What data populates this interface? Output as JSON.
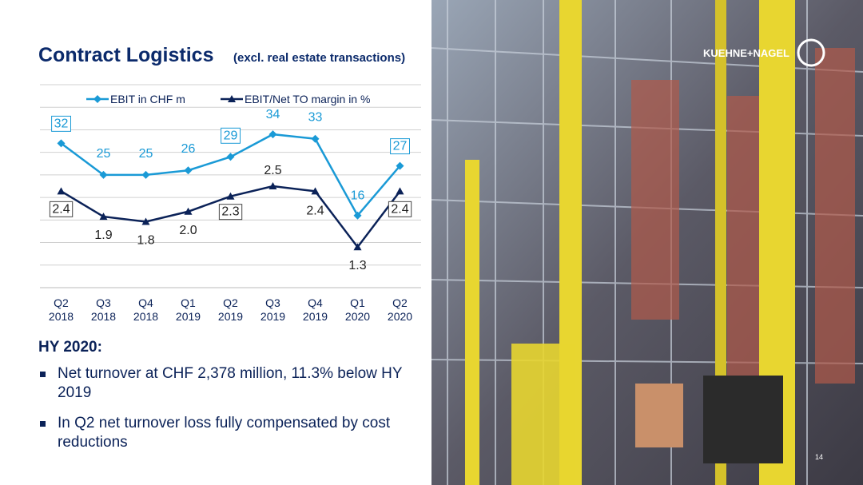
{
  "header": {
    "title": "Contract Logistics",
    "subtitle": "(excl. real estate transactions)",
    "logo": "KUEHNE+NAGEL",
    "page": "14"
  },
  "chart_data": {
    "type": "line",
    "categories": [
      "Q2 2018",
      "Q3 2018",
      "Q4 2018",
      "Q1 2019",
      "Q2 2019",
      "Q3 2019",
      "Q4 2019",
      "Q1 2020",
      "Q2 2020"
    ],
    "series": [
      {
        "name": "EBIT in CHF m",
        "color": "#1a9ad6",
        "marker": "diamond",
        "values": [
          32,
          25,
          25,
          26,
          29,
          34,
          33,
          16,
          27
        ]
      },
      {
        "name": "EBIT/Net TO margin in %",
        "color": "#0b2258",
        "marker": "triangle",
        "axis": "y2",
        "values": [
          2.4,
          1.9,
          1.8,
          2.0,
          2.3,
          2.5,
          2.4,
          1.3,
          2.4
        ],
        "value_labels": [
          "2.4",
          "1.9",
          "1.8",
          "2.0",
          "2.3",
          "2.5",
          "2.4",
          "1.3",
          "2.4"
        ]
      }
    ],
    "ylim": [
      0,
      45
    ],
    "y2lim": [
      0.5,
      4.5
    ],
    "grid": true,
    "legend": "top"
  },
  "body": {
    "heading": "HY 2020:",
    "bullets": [
      "Net turnover at CHF 2,378 million, 11.3% below HY 2019",
      "In Q2 net turnover loss fully compensated by cost reductions"
    ]
  }
}
